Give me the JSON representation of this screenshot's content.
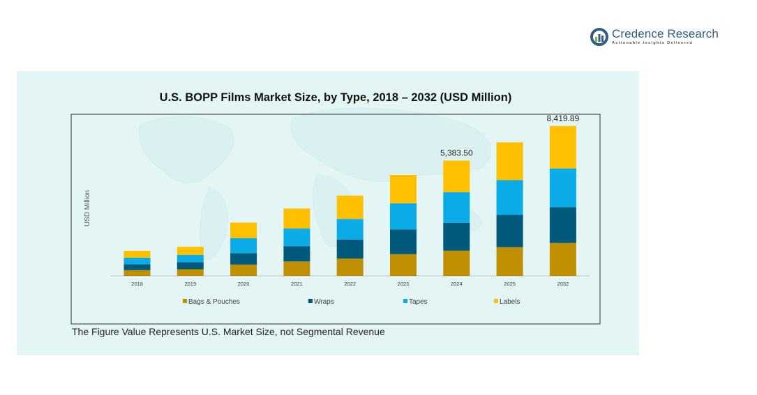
{
  "brand": {
    "name": "Credence Research",
    "tagline": "Actionable Insights Delivered",
    "colors": {
      "primary": "#2f5d83",
      "accent": "#7ab648"
    }
  },
  "footnote": "The Figure Value Represents U.S. Market Size, not Segmental Revenue",
  "chart_data": {
    "type": "bar",
    "stacked": true,
    "title": "U.S. BOPP Films Market Size, by Type, 2018 – 2032 (USD Million)",
    "xlabel": "",
    "ylabel": "USD Million",
    "ylim": [
      0,
      9000
    ],
    "grid": false,
    "legend_position": "bottom",
    "categories": [
      "2018",
      "2019",
      "2020",
      "2021",
      "2022",
      "2023",
      "2024",
      "2025",
      "2032"
    ],
    "series": [
      {
        "name": "Bags & Pouches",
        "color": "#bf8f00",
        "values": [
          330,
          380,
          650,
          830,
          1000,
          1250,
          1450,
          1650,
          1890
        ]
      },
      {
        "name": "Wraps",
        "color": "#00587a",
        "values": [
          340,
          400,
          660,
          880,
          1090,
          1420,
          1600,
          1850,
          2050
        ]
      },
      {
        "name": "Tapes",
        "color": "#0babe8",
        "values": [
          370,
          430,
          860,
          1010,
          1180,
          1500,
          1760,
          2000,
          2230
        ]
      },
      {
        "name": "Labels",
        "color": "#ffc000",
        "values": [
          400,
          460,
          890,
          1150,
          1340,
          1630,
          1810,
          2170,
          2440
        ]
      }
    ],
    "data_labels": [
      {
        "category": "2024",
        "text": "5,383.50"
      },
      {
        "category": "2032",
        "text": "8,419.89"
      }
    ]
  }
}
